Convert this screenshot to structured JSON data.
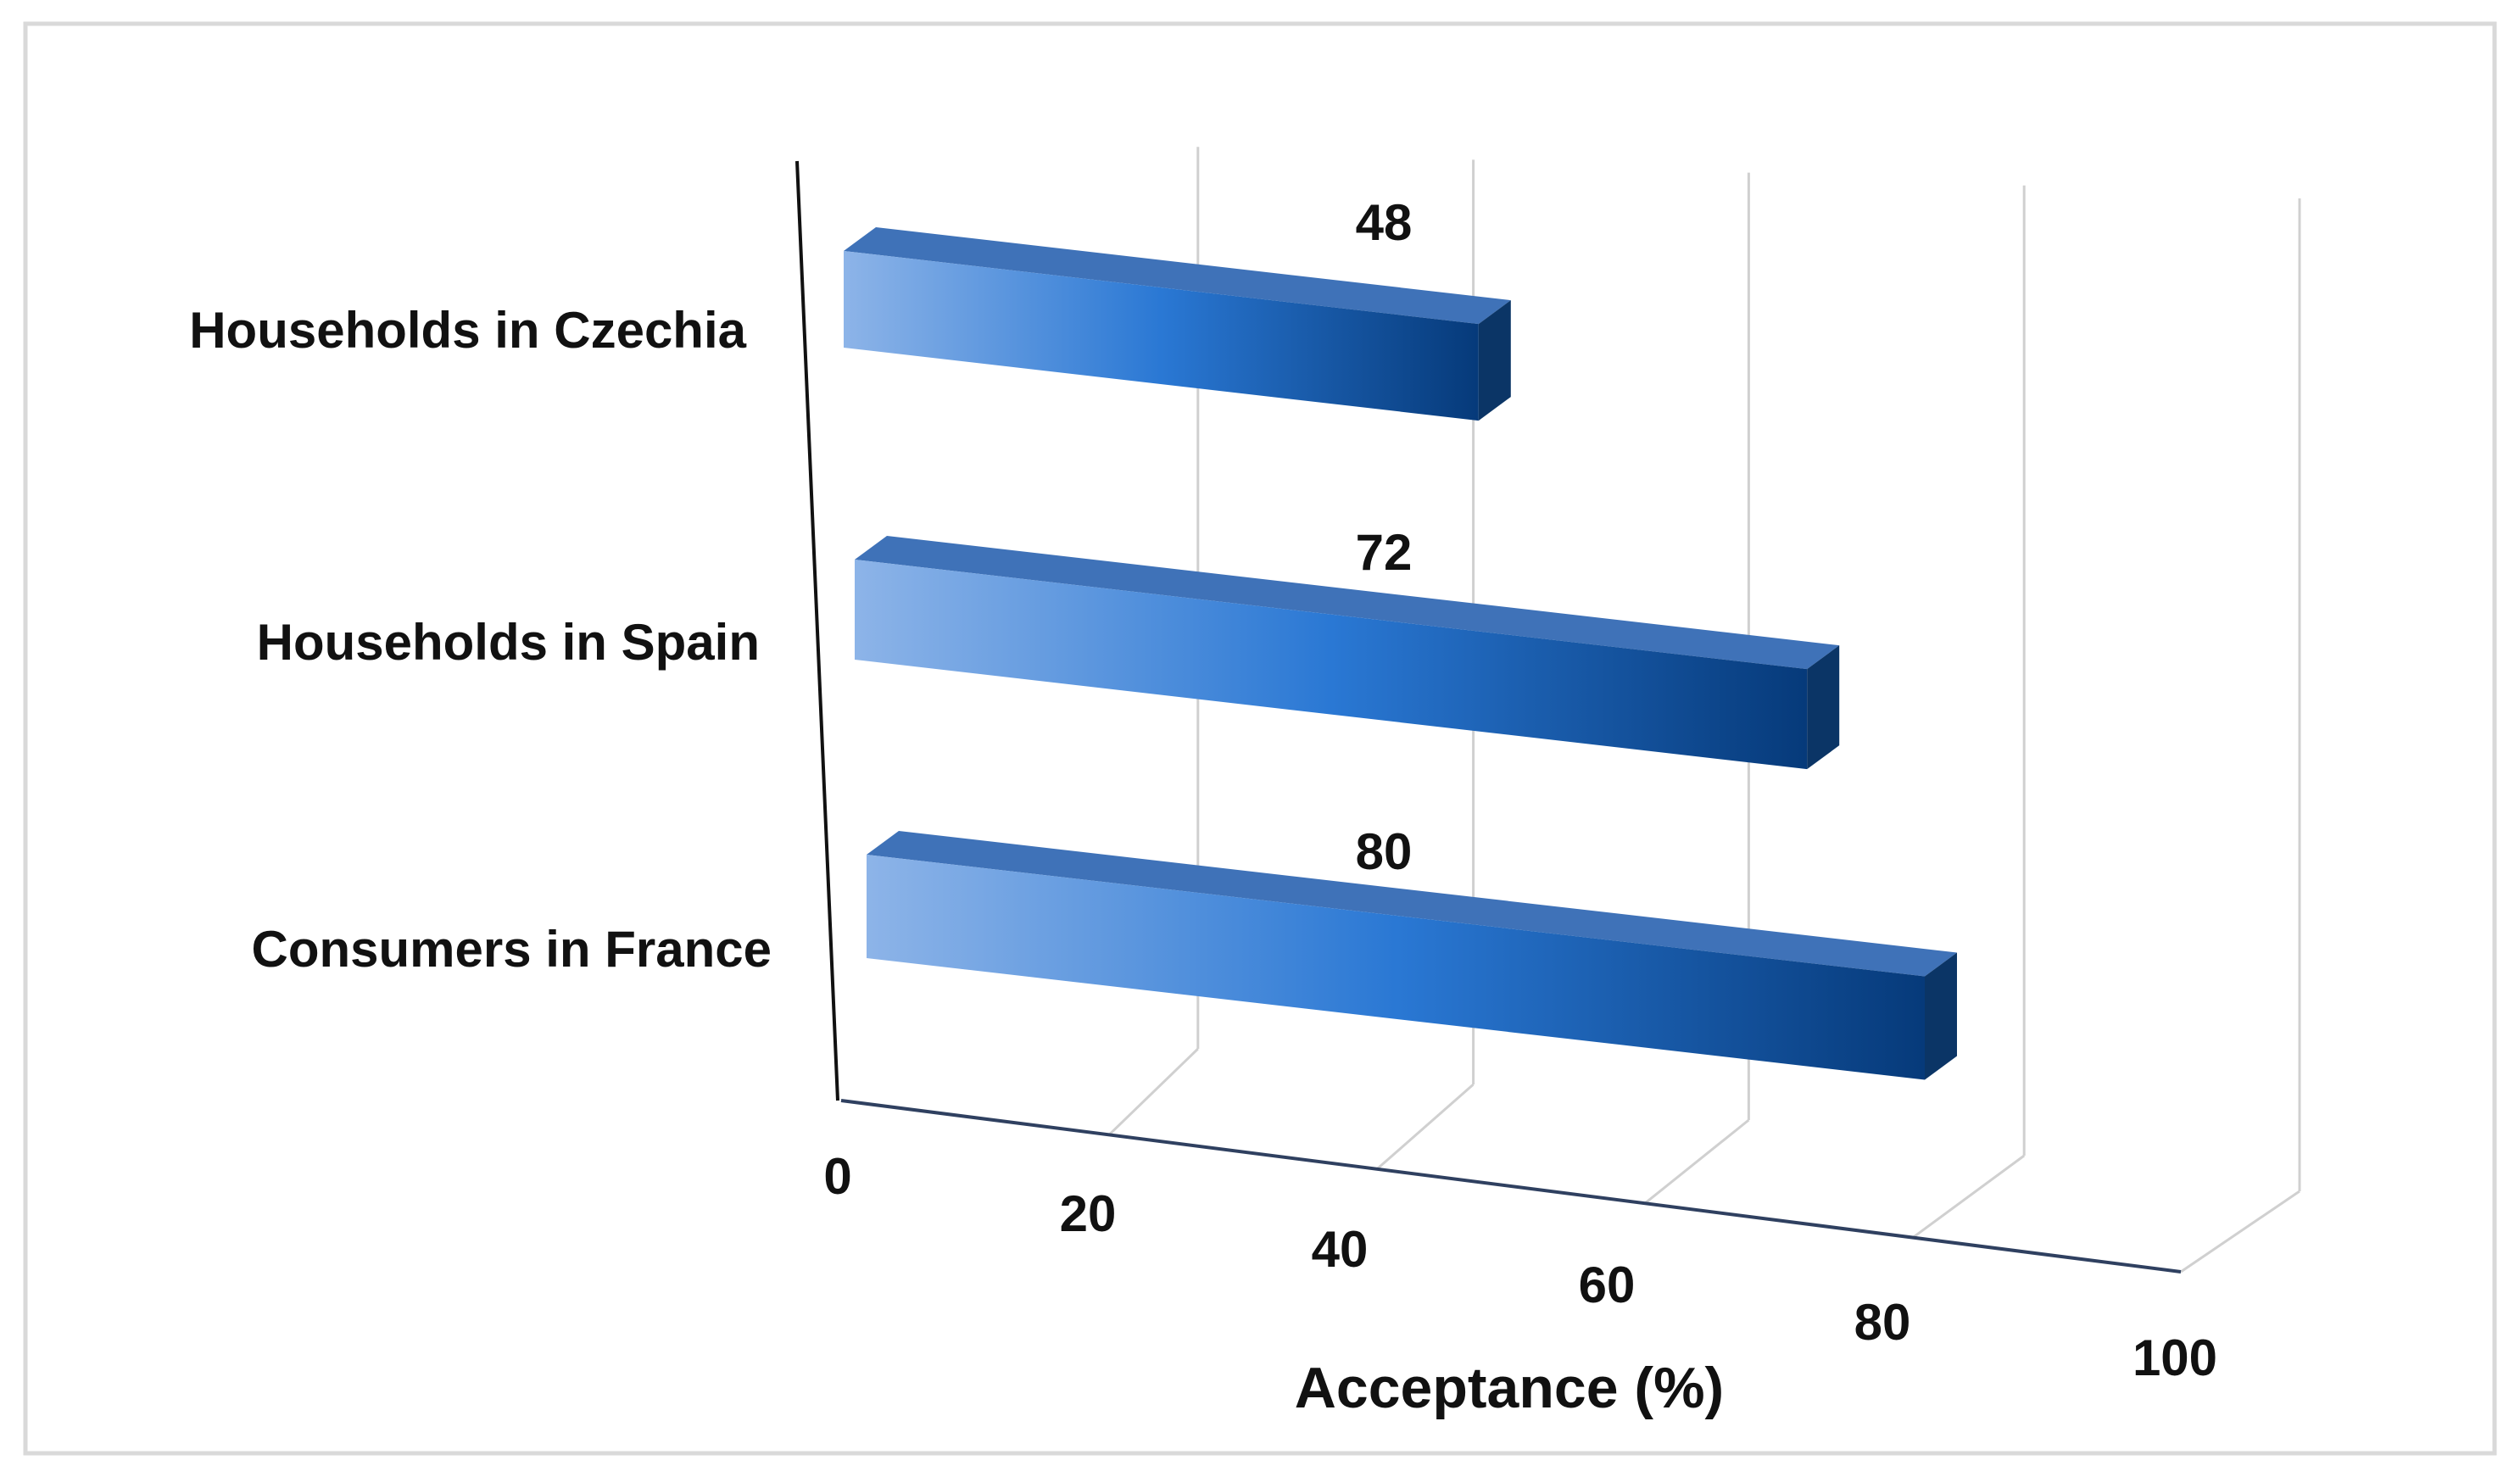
{
  "chart_data": {
    "type": "bar",
    "orientation": "horizontal",
    "style": "3d",
    "categories": [
      "Households in Czechia",
      "Households in Spain",
      "Consumers in France"
    ],
    "values": [
      48,
      72,
      80
    ],
    "data_labels": [
      "48",
      "72",
      "80"
    ],
    "title": "",
    "xlabel": "Acceptance (%)",
    "ylabel": "",
    "xlim": [
      0,
      100
    ],
    "x_ticks": [
      0,
      20,
      40,
      60,
      80,
      100
    ],
    "x_tick_labels": [
      "0",
      "20",
      "40",
      "60",
      "80",
      "100"
    ],
    "grid": true,
    "legend": "none",
    "colors": {
      "bar_light": "#8db4e8",
      "bar_mid": "#2a78d4",
      "bar_dark": "#063a7a",
      "bar_top": "#3f72b8",
      "bar_side": "#0b3566",
      "gridline": "#d0d0d0",
      "axis": "#111111",
      "frame": "#d9d9d9"
    }
  }
}
